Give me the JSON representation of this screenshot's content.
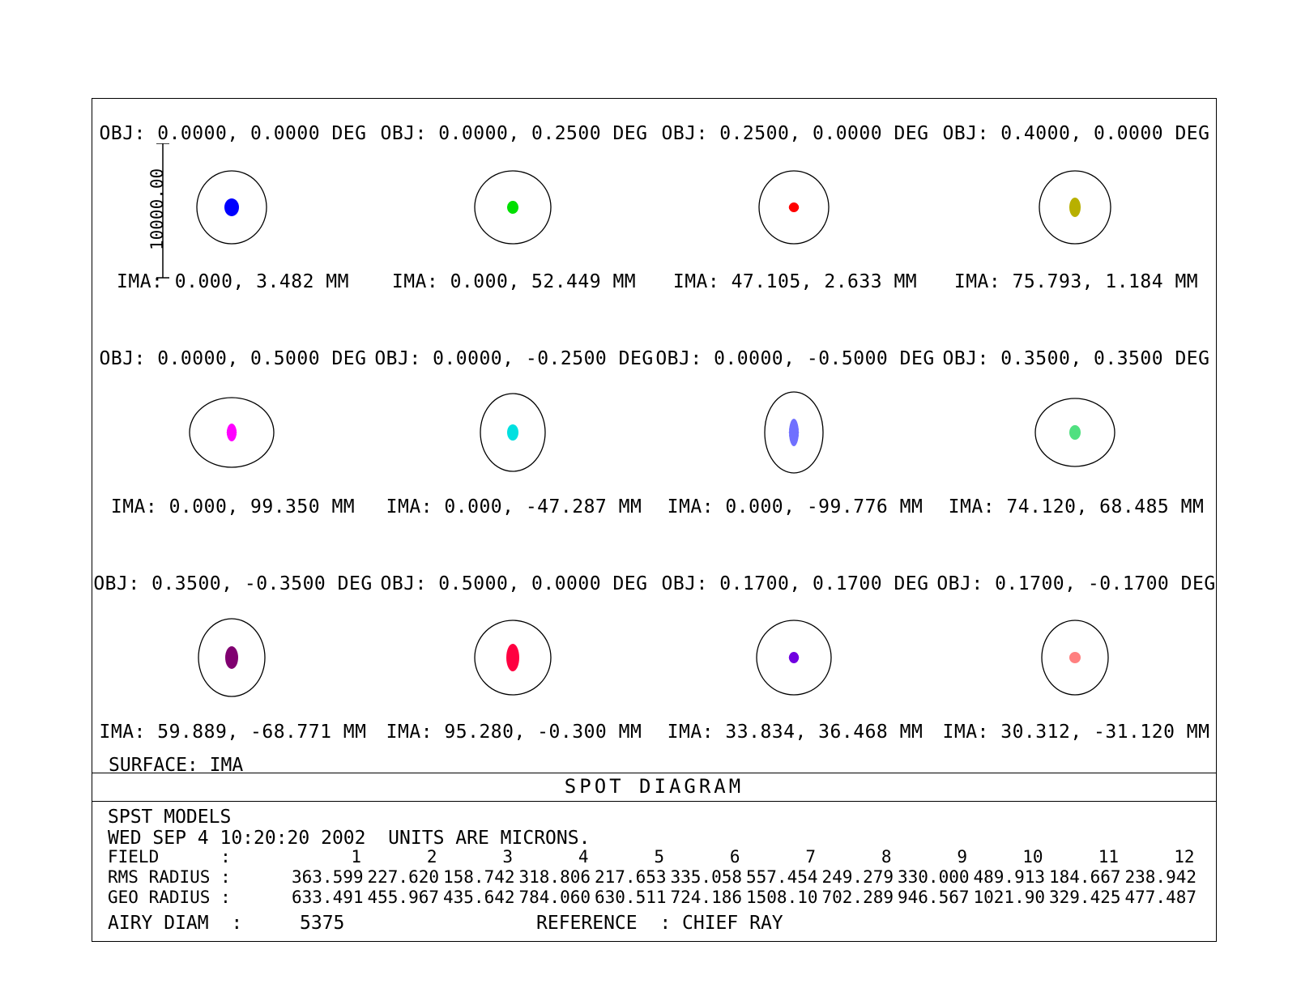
{
  "fields": [
    {
      "obj": "OBJ: 0.0000, 0.0000 DEG",
      "ima": "IMA: 0.000, 3.482 MM",
      "color": "#0000ff"
    },
    {
      "obj": "OBJ: 0.0000, 0.2500 DEG",
      "ima": "IMA: 0.000, 52.449 MM",
      "color": "#00e000"
    },
    {
      "obj": "OBJ: 0.2500, 0.0000 DEG",
      "ima": "IMA: 47.105, 2.633 MM",
      "color": "#ff0000"
    },
    {
      "obj": "OBJ: 0.4000, 0.0000 DEG",
      "ima": "IMA: 75.793, 1.184 MM",
      "color": "#b8b000"
    },
    {
      "obj": "OBJ: 0.0000, 0.5000 DEG",
      "ima": "IMA: 0.000, 99.350 MM",
      "color": "#ff00ff"
    },
    {
      "obj": "OBJ: 0.0000, -0.2500 DEG",
      "ima": "IMA: 0.000, -47.287 MM",
      "color": "#00e0e0"
    },
    {
      "obj": "OBJ: 0.0000, -0.5000 DEG",
      "ima": "IMA: 0.000, -99.776 MM",
      "color": "#7070ff"
    },
    {
      "obj": "OBJ: 0.3500, 0.3500 DEG",
      "ima": "IMA: 74.120, 68.485 MM",
      "color": "#50e080"
    },
    {
      "obj": "OBJ: 0.3500, -0.3500 DEG",
      "ima": "IMA: 59.889, -68.771 MM",
      "color": "#800070"
    },
    {
      "obj": "OBJ: 0.5000, 0.0000 DEG",
      "ima": "IMA: 95.280, -0.300 MM",
      "color": "#ff0040"
    },
    {
      "obj": "OBJ: 0.1700, 0.1700 DEG",
      "ima": "IMA: 33.834, 36.468 MM",
      "color": "#7000e0"
    },
    {
      "obj": "OBJ: 0.1700, -0.1700 DEG",
      "ima": "IMA: 30.312, -31.120 MM",
      "color": "#ff8080"
    }
  ],
  "scale_label": "10000.00",
  "surface": "SURFACE: IMA",
  "title": "SPOT DIAGRAM",
  "footer": {
    "line1": "SPST MODELS",
    "line2": "WED SEP 4 10:20:20 2002  UNITS ARE MICRONS.",
    "field_label": "FIELD      :",
    "rms_label": "RMS RADIUS :",
    "geo_label": "GEO RADIUS :",
    "field_numbers": [
      "1",
      "2",
      "3",
      "4",
      "5",
      "6",
      "7",
      "8",
      "9",
      "10",
      "11",
      "12"
    ],
    "rms_radius": [
      "363.599",
      "227.620",
      "158.742",
      "318.806",
      "217.653",
      "335.058",
      "557.454",
      "249.279",
      "330.000",
      "489.913",
      "184.667",
      "238.942"
    ],
    "geo_radius": [
      "633.491",
      "455.967",
      "435.642",
      "784.060",
      "630.511",
      "724.186",
      "1508.10",
      "702.289",
      "946.567",
      "1021.90",
      "329.425",
      "477.487"
    ],
    "airy_label": "AIRY DIAM  :",
    "airy_value": "5375",
    "reference": "REFERENCE  : CHIEF RAY"
  }
}
